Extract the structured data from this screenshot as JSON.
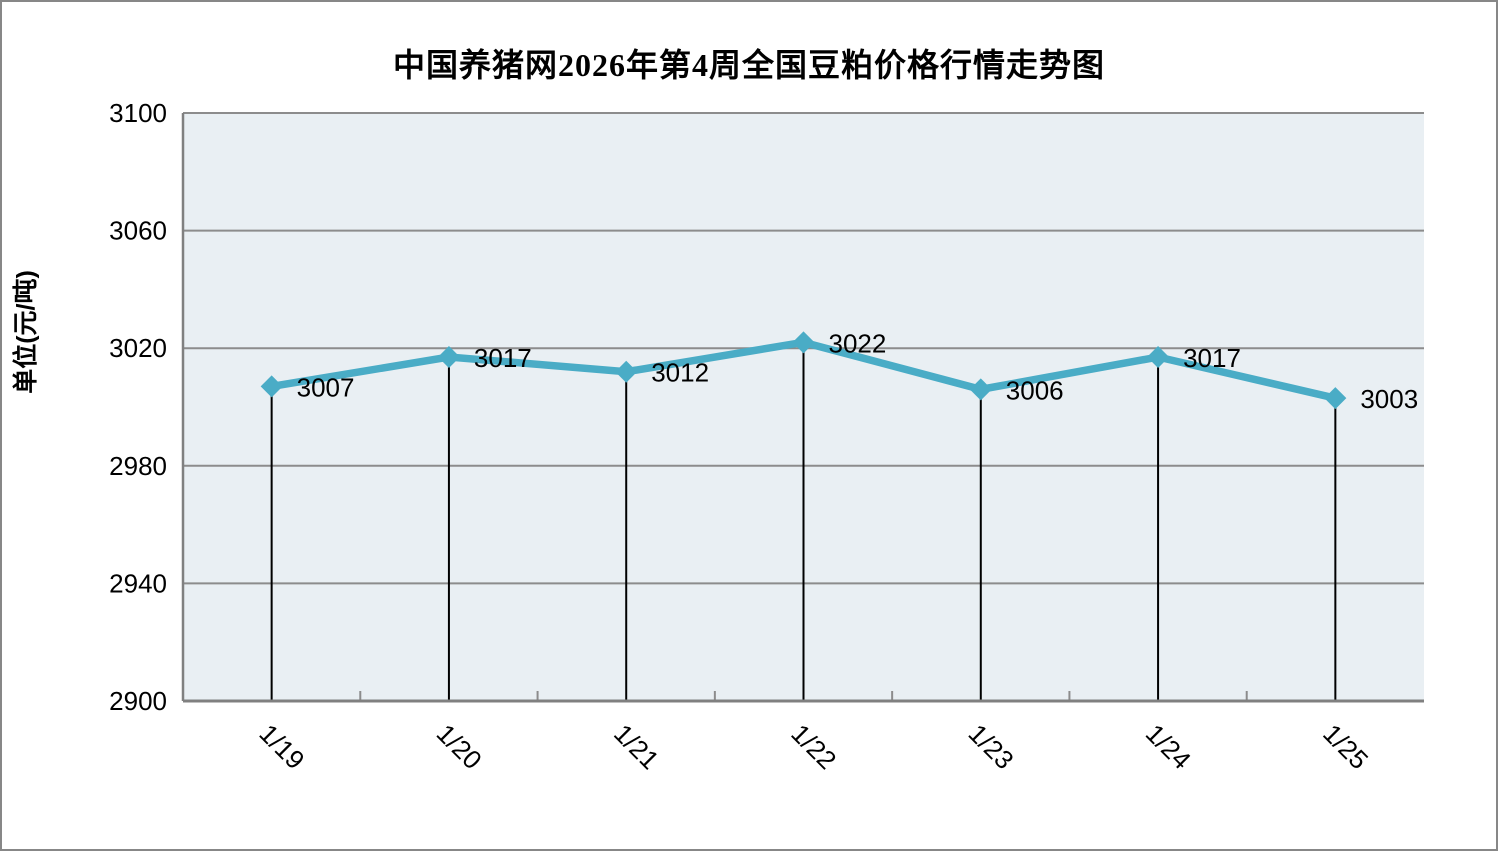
{
  "frame": {
    "border_color": "#878787",
    "background": "#FFFFFF"
  },
  "chart_data": {
    "type": "line",
    "title": "中国养猪网2026年第4周全国豆粕价格行情走势图",
    "ylabel": "单位(元/吨)",
    "xlabel": "",
    "categories": [
      "1/19",
      "1/20",
      "1/21",
      "1/22",
      "1/23",
      "1/24",
      "1/25"
    ],
    "values": [
      3007,
      3017,
      3012,
      3022,
      3006,
      3017,
      3003
    ],
    "data_labels": [
      "3007",
      "3017",
      "3012",
      "3022",
      "3006",
      "3017",
      "3003"
    ],
    "ylim": [
      2900,
      3100
    ],
    "yticks": [
      2900,
      2940,
      2980,
      3020,
      3060,
      3100
    ],
    "grid": true,
    "legend_position": "none",
    "marker": "diamond",
    "show_data_labels": true,
    "drop_lines": true,
    "x_label_rotation_deg": 45,
    "colors": {
      "line": "#4AACC6",
      "plot_background": "#E9EFF3",
      "gridline": "#8C8C8C",
      "axis": "#808080",
      "drop_line": "#000000",
      "text": "#000000"
    }
  }
}
